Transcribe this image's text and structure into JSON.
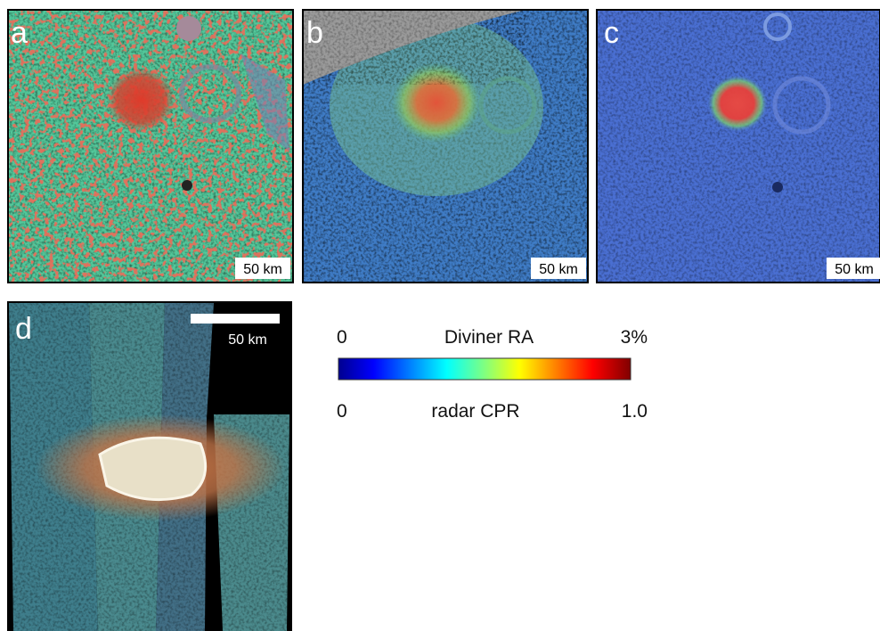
{
  "panels": [
    {
      "label": "a",
      "scale_bar": "50 km"
    },
    {
      "label": "b",
      "scale_bar": "50 km"
    },
    {
      "label": "c",
      "scale_bar": "50 km"
    },
    {
      "label": "d",
      "scale_bar": "50 km"
    }
  ],
  "colorbar": {
    "top": {
      "min": "0",
      "title": "Diviner RA",
      "max": "3%"
    },
    "bottom": {
      "min": "0",
      "title": "radar CPR",
      "max": "1.0"
    }
  }
}
